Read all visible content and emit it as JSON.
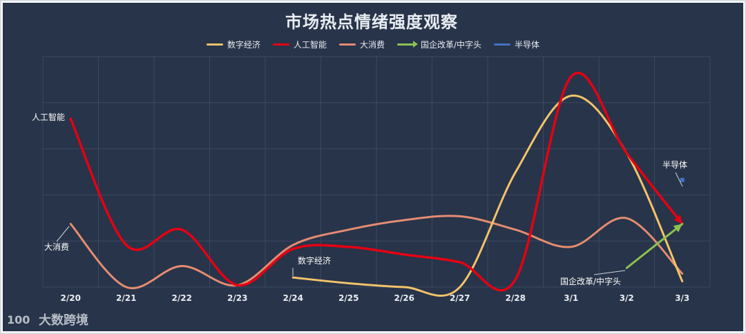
{
  "chart_data": {
    "type": "line",
    "title": "市场热点情绪强度观察",
    "categories": [
      "2/20",
      "2/21",
      "2/22",
      "2/23",
      "2/24",
      "2/25",
      "2/26",
      "2/27",
      "2/28",
      "3/1",
      "3/2",
      "3/3"
    ],
    "ylim": [
      0,
      100
    ],
    "grid": true,
    "legend_position": "top-center",
    "series": [
      {
        "name": "数字经济",
        "color": "#f3c46a",
        "values": [
          null,
          null,
          null,
          null,
          5,
          2,
          -2,
          0,
          60,
          100,
          70,
          3
        ],
        "label": "数字经济"
      },
      {
        "name": "人工智能",
        "color": "#e60012",
        "values": [
          88,
          22,
          30,
          1,
          20,
          21,
          17,
          13,
          4,
          110,
          70,
          33
        ],
        "label": "人工智能"
      },
      {
        "name": "大消费",
        "color": "#e58c72",
        "values": [
          33,
          0,
          11,
          1,
          22,
          30,
          35,
          37,
          30,
          21,
          36,
          7
        ],
        "label": "大消费"
      },
      {
        "name": "国企改革/中字头",
        "color": "#8cc152",
        "values": [
          null,
          null,
          null,
          null,
          null,
          null,
          null,
          null,
          null,
          null,
          10,
          33
        ],
        "label": "国企改革/中字头"
      },
      {
        "name": "半导体",
        "color": "#4472c4",
        "values": [
          null,
          null,
          null,
          null,
          null,
          null,
          null,
          null,
          null,
          null,
          null,
          56
        ],
        "label": "半导体"
      }
    ]
  },
  "watermark": {
    "text": "大数跨境",
    "logo_text": "100"
  }
}
